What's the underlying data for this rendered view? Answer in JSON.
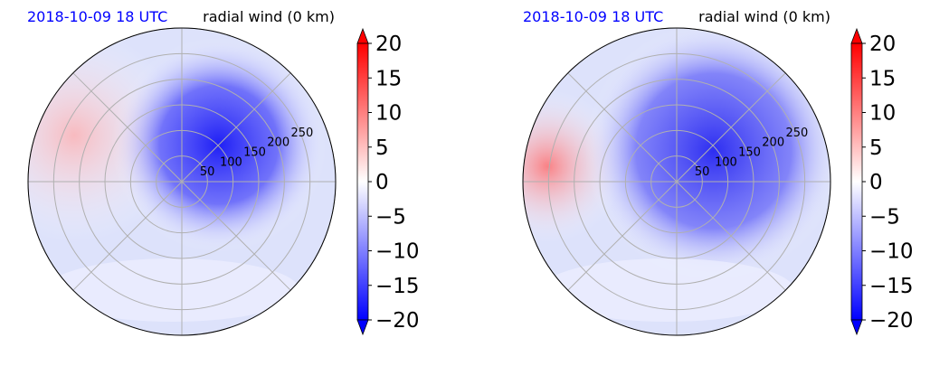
{
  "chart_data": [
    {
      "type": "heatmap",
      "projection": "polar",
      "title_left": "2018-10-09 18 UTC",
      "title_right": "radial wind (0 km)",
      "title_left_color": "#0000ff",
      "r_ticks": [
        50,
        100,
        150,
        200,
        250
      ],
      "r_max": 300,
      "theta_gridlines_deg": [
        0,
        45,
        90,
        135,
        180,
        225,
        270,
        315
      ],
      "grid": true,
      "colorbar": {
        "label": "",
        "ticks": [
          20,
          15,
          10,
          5,
          0,
          -5,
          -10,
          -15,
          -20
        ],
        "vmin": -20,
        "vmax": 20,
        "extend": "both",
        "colormap": "bwr",
        "low_color": "#0000ff",
        "mid_color": "#ffffff",
        "high_color": "#ff0000"
      }
    },
    {
      "type": "heatmap",
      "projection": "polar",
      "title_left": "2018-10-09 18 UTC",
      "title_right": "radial wind (0 km)",
      "title_left_color": "#0000ff",
      "r_ticks": [
        50,
        100,
        150,
        200,
        250
      ],
      "r_max": 300,
      "theta_gridlines_deg": [
        0,
        45,
        90,
        135,
        180,
        225,
        270,
        315
      ],
      "grid": true,
      "colorbar": {
        "label": "",
        "ticks": [
          20,
          15,
          10,
          5,
          0,
          -5,
          -10,
          -15,
          -20
        ],
        "vmin": -20,
        "vmax": 20,
        "extend": "both",
        "colormap": "bwr",
        "low_color": "#0000ff",
        "mid_color": "#ffffff",
        "high_color": "#ff0000"
      }
    }
  ]
}
